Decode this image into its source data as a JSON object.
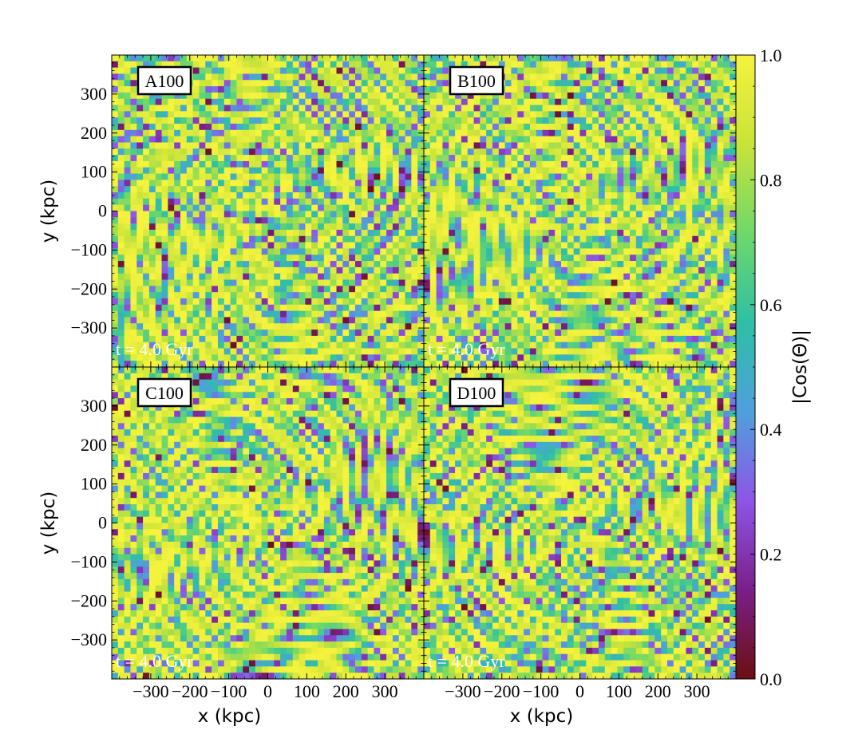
{
  "chart_data": {
    "type": "heatmap",
    "quantity_label": "|Cos(Θ)|",
    "colormap": "viridis-to-dark-red",
    "color_stops": [
      "#6b0f12",
      "#7a1f8a",
      "#8e55e6",
      "#4fa0dd",
      "#2fbfa5",
      "#6fd86a",
      "#c9e33a",
      "#f5f33d"
    ],
    "colorbar": {
      "range": [
        0.0,
        1.0
      ],
      "ticks": [
        0.0,
        0.2,
        0.4,
        0.6,
        0.8,
        1.0
      ],
      "tick_labels": [
        "0.0",
        "0.2",
        "0.4",
        "0.6",
        "0.8",
        "1.0"
      ],
      "label": "|Cos(Θ)|"
    },
    "panels": [
      {
        "id": "A100",
        "label": "A100",
        "annotation": "t = 4.0 Gyr",
        "show_ylabel": true,
        "show_xlabel": false
      },
      {
        "id": "B100",
        "label": "B100",
        "annotation": "t = 4.0 Gyr",
        "show_ylabel": false,
        "show_xlabel": false
      },
      {
        "id": "C100",
        "label": "C100",
        "annotation": "t = 4.0 Gyr",
        "show_ylabel": true,
        "show_xlabel": true
      },
      {
        "id": "D100",
        "label": "D100",
        "annotation": "t = 4.0 Gyr",
        "show_ylabel": false,
        "show_xlabel": true
      }
    ],
    "xlabel": "x  (kpc)",
    "ylabel": "y  (kpc)",
    "xlim": [
      -400,
      400
    ],
    "ylim": [
      -400,
      400
    ],
    "xticks": [
      -300,
      -200,
      -100,
      0,
      100,
      200,
      300
    ],
    "xtick_labels": [
      "−300",
      "−200",
      "−100",
      "0",
      "100",
      "200",
      "300"
    ],
    "yticks": [
      300,
      200,
      100,
      0,
      -100,
      -200,
      -300
    ],
    "ytick_labels": [
      "300",
      "200",
      "100",
      "0",
      "−100",
      "−200",
      "−300"
    ]
  }
}
